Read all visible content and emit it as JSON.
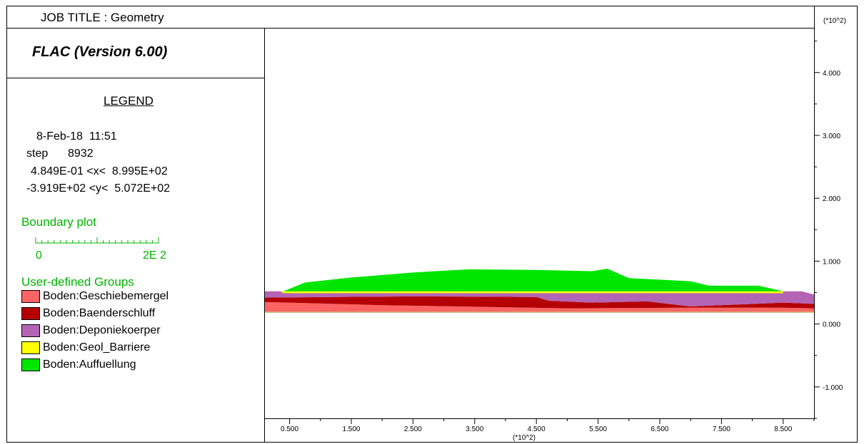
{
  "job_title": "JOB TITLE : Geometry",
  "version": "FLAC (Version 6.00)",
  "legend": {
    "heading": "LEGEND",
    "date_time": "8-Feb-18  11:51",
    "step_label": "step",
    "step_value": "8932",
    "x_range": "4.849E-01 <x<  8.995E+02",
    "y_range": "-3.919E+02 <y<  5.072E+02",
    "boundary_plot": "Boundary plot",
    "scale_min": "0",
    "scale_max": "2E  2",
    "groups_heading": "User-defined Groups",
    "groups": [
      {
        "label": "Boden:Geschiebemergel",
        "color": "#ff6464"
      },
      {
        "label": "Boden:Baenderschluff",
        "color": "#b40000"
      },
      {
        "label": "Boden:Deponiekoerper",
        "color": "#b464b4"
      },
      {
        "label": "Boden:Geol_Barriere",
        "color": "#ffff00"
      },
      {
        "label": "Boden:Auffuellung",
        "color": "#00e600"
      }
    ]
  },
  "chart_data": {
    "type": "area",
    "x_unit_label": "(*10^2)",
    "y_unit_label": "(*10^2)",
    "xlim": [
      0.1,
      9.0
    ],
    "ylim": [
      -1.5,
      4.7
    ],
    "x_ticks": [
      "0.500",
      "1.500",
      "2.500",
      "3.500",
      "4.500",
      "5.500",
      "6.500",
      "7.500",
      "8.500"
    ],
    "y_ticks": [
      "-1.000",
      "0.000",
      "1.000",
      "2.000",
      "3.000",
      "4.000"
    ],
    "background_color": "#d2a76c",
    "layers": [
      {
        "name": "Boden:Geschiebemergel",
        "color": "#ff6464",
        "polygon": [
          [
            0.1,
            0.2
          ],
          [
            9.0,
            0.2
          ],
          [
            9.0,
            0.25
          ],
          [
            8.5,
            0.26
          ],
          [
            7.0,
            0.26
          ],
          [
            5.0,
            0.25
          ],
          [
            2.0,
            0.3
          ],
          [
            0.1,
            0.35
          ]
        ]
      },
      {
        "name": "Boden:Baenderschluff",
        "color": "#b40000",
        "polygon": [
          [
            0.1,
            0.35
          ],
          [
            2.0,
            0.3
          ],
          [
            5.0,
            0.25
          ],
          [
            7.0,
            0.26
          ],
          [
            8.5,
            0.26
          ],
          [
            9.0,
            0.25
          ],
          [
            9.0,
            0.32
          ],
          [
            8.5,
            0.34
          ],
          [
            7.0,
            0.28
          ],
          [
            6.3,
            0.36
          ],
          [
            5.4,
            0.34
          ],
          [
            4.7,
            0.37
          ],
          [
            4.5,
            0.43
          ],
          [
            2.5,
            0.44
          ],
          [
            0.1,
            0.42
          ]
        ]
      },
      {
        "name": "Boden:Deponiekoerper",
        "color": "#b464b4",
        "polygon": [
          [
            0.1,
            0.42
          ],
          [
            2.5,
            0.44
          ],
          [
            4.5,
            0.43
          ],
          [
            4.7,
            0.37
          ],
          [
            5.4,
            0.34
          ],
          [
            6.3,
            0.36
          ],
          [
            7.0,
            0.28
          ],
          [
            8.5,
            0.34
          ],
          [
            9.0,
            0.32
          ],
          [
            9.0,
            0.47
          ],
          [
            8.8,
            0.52
          ],
          [
            8.5,
            0.52
          ],
          [
            0.35,
            0.52
          ],
          [
            0.1,
            0.52
          ]
        ]
      },
      {
        "name": "Boden:Geol_Barriere",
        "color": "#ffff00",
        "polygon": [
          [
            0.35,
            0.52
          ],
          [
            8.5,
            0.52
          ],
          [
            8.5,
            0.49
          ],
          [
            0.4,
            0.49
          ]
        ]
      },
      {
        "name": "Boden:Auffuellung",
        "color": "#00e600",
        "polygon": [
          [
            0.4,
            0.52
          ],
          [
            0.75,
            0.66
          ],
          [
            1.5,
            0.74
          ],
          [
            2.5,
            0.82
          ],
          [
            3.4,
            0.87
          ],
          [
            4.5,
            0.86
          ],
          [
            5.4,
            0.84
          ],
          [
            5.65,
            0.88
          ],
          [
            6.0,
            0.73
          ],
          [
            7.0,
            0.68
          ],
          [
            7.3,
            0.61
          ],
          [
            8.1,
            0.61
          ],
          [
            8.5,
            0.52
          ]
        ]
      }
    ]
  }
}
